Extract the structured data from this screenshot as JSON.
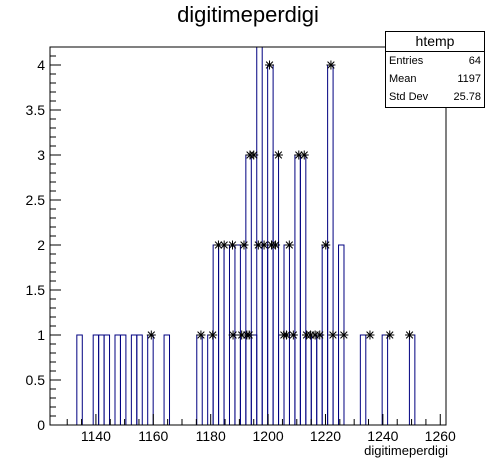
{
  "chart_data": {
    "type": "bar",
    "title": "digitimeperdigi",
    "xlabel": "digitimeperdigi",
    "ylabel": "",
    "xlim": [
      1124,
      1262
    ],
    "ylim": [
      0,
      4.2
    ],
    "bin_width": 1.9,
    "bins": [
      {
        "x": 1134.3,
        "y": 1
      },
      {
        "x": 1140.0,
        "y": 1
      },
      {
        "x": 1141.9,
        "y": 1
      },
      {
        "x": 1143.8,
        "y": 1
      },
      {
        "x": 1147.6,
        "y": 1
      },
      {
        "x": 1149.5,
        "y": 1
      },
      {
        "x": 1153.3,
        "y": 1
      },
      {
        "x": 1155.2,
        "y": 1
      },
      {
        "x": 1159.0,
        "y": 1
      },
      {
        "x": 1164.7,
        "y": 1
      },
      {
        "x": 1176.1,
        "y": 1
      },
      {
        "x": 1179.9,
        "y": 1
      },
      {
        "x": 1181.8,
        "y": 2
      },
      {
        "x": 1183.7,
        "y": 2
      },
      {
        "x": 1185.6,
        "y": 2
      },
      {
        "x": 1187.5,
        "y": 1
      },
      {
        "x": 1189.4,
        "y": 2
      },
      {
        "x": 1191.3,
        "y": 1
      },
      {
        "x": 1193.2,
        "y": 3
      },
      {
        "x": 1195.1,
        "y": 1
      },
      {
        "x": 1197.0,
        "y": 4.2
      },
      {
        "x": 1198.9,
        "y": 2
      },
      {
        "x": 1200.8,
        "y": 4
      },
      {
        "x": 1202.7,
        "y": 3
      },
      {
        "x": 1204.6,
        "y": 1
      },
      {
        "x": 1206.5,
        "y": 2
      },
      {
        "x": 1208.4,
        "y": 1
      },
      {
        "x": 1210.3,
        "y": 3
      },
      {
        "x": 1212.2,
        "y": 3
      },
      {
        "x": 1214.1,
        "y": 1
      },
      {
        "x": 1216.0,
        "y": 1
      },
      {
        "x": 1217.9,
        "y": 1
      },
      {
        "x": 1219.8,
        "y": 2
      },
      {
        "x": 1221.7,
        "y": 4
      },
      {
        "x": 1223.6,
        "y": 1
      },
      {
        "x": 1225.5,
        "y": 2
      },
      {
        "x": 1233.1,
        "y": 1
      },
      {
        "x": 1240.7,
        "y": 1
      },
      {
        "x": 1250.2,
        "y": 1
      }
    ],
    "points": [
      {
        "x": 1159.3,
        "y": 1
      },
      {
        "x": 1176.6,
        "y": 1
      },
      {
        "x": 1180.7,
        "y": 1
      },
      {
        "x": 1182.7,
        "y": 2
      },
      {
        "x": 1184.7,
        "y": 2
      },
      {
        "x": 1187.6,
        "y": 2
      },
      {
        "x": 1187.8,
        "y": 1
      },
      {
        "x": 1190.8,
        "y": 1
      },
      {
        "x": 1191.6,
        "y": 2
      },
      {
        "x": 1192.6,
        "y": 1
      },
      {
        "x": 1193.4,
        "y": 1
      },
      {
        "x": 1193.7,
        "y": 3
      },
      {
        "x": 1195.0,
        "y": 3
      },
      {
        "x": 1196.6,
        "y": 2
      },
      {
        "x": 1198.6,
        "y": 2
      },
      {
        "x": 1200.5,
        "y": 4
      },
      {
        "x": 1201.2,
        "y": 2
      },
      {
        "x": 1202.6,
        "y": 2
      },
      {
        "x": 1203.6,
        "y": 3
      },
      {
        "x": 1205.5,
        "y": 1
      },
      {
        "x": 1206.4,
        "y": 1
      },
      {
        "x": 1207.4,
        "y": 2
      },
      {
        "x": 1208.8,
        "y": 1
      },
      {
        "x": 1210.7,
        "y": 3
      },
      {
        "x": 1212.6,
        "y": 3
      },
      {
        "x": 1213.4,
        "y": 1
      },
      {
        "x": 1214.8,
        "y": 1
      },
      {
        "x": 1216.4,
        "y": 1
      },
      {
        "x": 1218.0,
        "y": 1
      },
      {
        "x": 1220.1,
        "y": 2
      },
      {
        "x": 1221.9,
        "y": 4
      },
      {
        "x": 1222.6,
        "y": 1
      },
      {
        "x": 1226.4,
        "y": 1
      },
      {
        "x": 1235.5,
        "y": 1
      },
      {
        "x": 1242.4,
        "y": 1
      },
      {
        "x": 1249.3,
        "y": 1
      }
    ],
    "x_ticks": [
      1140,
      1160,
      1180,
      1200,
      1220,
      1240,
      1260
    ],
    "y_ticks": [
      0,
      0.5,
      1,
      1.5,
      2,
      2.5,
      3,
      3.5,
      4
    ],
    "colors": {
      "hist_line": "#000080",
      "marker": "#000000",
      "axis": "#000000"
    },
    "stats_box": {
      "title": "htemp",
      "entries_label": "Entries",
      "entries_value": "64",
      "mean_label": "Mean",
      "mean_value": "1197",
      "std_label": "Std Dev",
      "std_value": "25.78"
    }
  }
}
